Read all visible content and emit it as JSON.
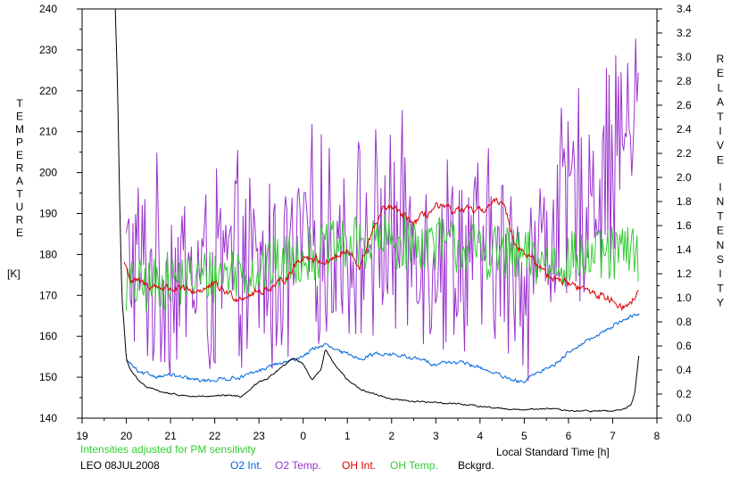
{
  "chart_data": {
    "type": "line",
    "note": "Intensities adjusted for PM sensitivity",
    "footer_left": "LEO 08JUL2008",
    "xlabel": "Local Standard Time [h]",
    "ylabel_left": {
      "letters": [
        "T",
        "E",
        "M",
        "P",
        "E",
        "R",
        "A",
        "T",
        "U",
        "R",
        "E"
      ],
      "unit": "[K]"
    },
    "ylabel_right": {
      "word1": [
        "R",
        "E",
        "L",
        "A",
        "T",
        "I",
        "V",
        "E"
      ],
      "word2": [
        "I",
        "N",
        "T",
        "E",
        "N",
        "S",
        "I",
        "T",
        "Y"
      ]
    },
    "x_ticks": [
      "19",
      "20",
      "21",
      "22",
      "23",
      "0",
      "1",
      "2",
      "3",
      "4",
      "5",
      "6",
      "7",
      "8"
    ],
    "xlim": [
      19,
      32
    ],
    "y_left_ticks": [
      "140",
      "150",
      "160",
      "170",
      "180",
      "190",
      "200",
      "210",
      "220",
      "230",
      "240"
    ],
    "ylim_left": [
      140,
      240
    ],
    "y_right_ticks": [
      "0.0",
      "0.2",
      "0.4",
      "0.6",
      "0.8",
      "1.0",
      "1.2",
      "1.4",
      "1.6",
      "1.8",
      "2.0",
      "2.2",
      "2.4",
      "2.6",
      "2.8",
      "3.0",
      "3.2",
      "3.4"
    ],
    "ylim_right": [
      0,
      3.4
    ],
    "grid": false,
    "legend": [
      {
        "name": "O2 Int.",
        "color": "#0066dd"
      },
      {
        "name": "O2 Temp.",
        "color": "#9933cc"
      },
      {
        "name": "OH Int.",
        "color": "#dd0000"
      },
      {
        "name": "OH Temp.",
        "color": "#33cc33"
      },
      {
        "name": "Bckgrd.",
        "color": "#000000"
      }
    ],
    "series": [
      {
        "name": "O2 Temp.",
        "axis": "left",
        "color": "#9933cc",
        "noise": 22,
        "x": [
          20.0,
          20.5,
          21.0,
          21.5,
          22.0,
          22.5,
          23.0,
          23.5,
          24.0,
          24.5,
          25.0,
          25.5,
          26.0,
          26.5,
          27.0,
          27.5,
          28.0,
          28.5,
          29.0,
          29.5,
          30.0,
          30.5,
          31.0,
          31.5,
          31.6
        ],
        "y": [
          178,
          175,
          176,
          174,
          175,
          176,
          175,
          176,
          182,
          183,
          182,
          184,
          185,
          184,
          182,
          181,
          180,
          178,
          175,
          185,
          192,
          196,
          205,
          213,
          215
        ]
      },
      {
        "name": "OH Temp.",
        "axis": "left",
        "color": "#33cc33",
        "noise": 7,
        "x": [
          20.0,
          20.5,
          21.0,
          21.5,
          22.0,
          22.5,
          23.0,
          23.5,
          24.0,
          24.5,
          25.0,
          25.5,
          26.0,
          26.5,
          27.0,
          27.5,
          28.0,
          28.5,
          29.0,
          29.5,
          30.0,
          30.5,
          31.0,
          31.5,
          31.6
        ],
        "y": [
          172,
          172,
          174,
          174,
          175,
          176,
          176,
          178,
          180,
          181,
          182,
          183,
          183,
          183,
          183,
          182,
          181,
          180,
          179,
          178,
          179,
          179,
          180,
          181,
          180
        ]
      },
      {
        "name": "OH Int.",
        "axis": "right",
        "color": "#dd0000",
        "noise": 0.03,
        "x": [
          19.95,
          20.1,
          20.5,
          21.0,
          21.5,
          22.0,
          22.5,
          23.0,
          23.5,
          24.0,
          24.5,
          25.0,
          25.3,
          25.5,
          25.8,
          26.0,
          26.5,
          27.0,
          27.5,
          28.0,
          28.5,
          28.8,
          29.0,
          29.5,
          30.0,
          30.5,
          31.0,
          31.3,
          31.6
        ],
        "y": [
          1.3,
          1.15,
          1.1,
          1.08,
          1.05,
          1.1,
          1.0,
          1.05,
          1.12,
          1.35,
          1.3,
          1.38,
          1.25,
          1.5,
          1.72,
          1.75,
          1.62,
          1.75,
          1.72,
          1.72,
          1.82,
          1.45,
          1.38,
          1.2,
          1.12,
          1.05,
          0.98,
          0.92,
          1.05
        ]
      },
      {
        "name": "O2 Int.",
        "axis": "right",
        "color": "#0066dd",
        "noise": 0.015,
        "x": [
          20.0,
          20.1,
          20.3,
          20.7,
          21.0,
          21.3,
          21.7,
          22.0,
          22.3,
          22.7,
          23.0,
          23.3,
          23.7,
          24.0,
          24.3,
          24.5,
          24.8,
          25.0,
          25.3,
          25.7,
          26.0,
          26.3,
          26.7,
          27.0,
          27.3,
          27.7,
          28.0,
          28.3,
          28.7,
          29.0,
          29.3,
          29.7,
          30.0,
          30.3,
          30.7,
          31.0,
          31.3,
          31.6
        ],
        "y": [
          0.48,
          0.45,
          0.37,
          0.35,
          0.36,
          0.33,
          0.31,
          0.32,
          0.33,
          0.35,
          0.39,
          0.44,
          0.47,
          0.52,
          0.59,
          0.61,
          0.55,
          0.53,
          0.5,
          0.54,
          0.53,
          0.51,
          0.48,
          0.45,
          0.47,
          0.45,
          0.42,
          0.38,
          0.31,
          0.3,
          0.38,
          0.45,
          0.55,
          0.62,
          0.69,
          0.77,
          0.83,
          0.86
        ]
      },
      {
        "name": "Bckgrd.",
        "axis": "right",
        "color": "#000000",
        "noise": 0.006,
        "x": [
          19.75,
          19.8,
          19.85,
          19.9,
          19.95,
          20.0,
          20.1,
          20.3,
          20.5,
          21.0,
          21.5,
          22.0,
          22.3,
          22.6,
          23.0,
          23.2,
          23.5,
          23.8,
          24.0,
          24.2,
          24.4,
          24.5,
          24.7,
          25.0,
          25.3,
          25.6,
          26.0,
          26.5,
          27.0,
          27.5,
          28.0,
          28.5,
          29.0,
          29.5,
          30.0,
          30.5,
          31.0,
          31.2,
          31.4,
          31.5,
          31.6
        ],
        "y": [
          3.4,
          2.8,
          1.8,
          1.0,
          0.75,
          0.5,
          0.4,
          0.3,
          0.25,
          0.2,
          0.18,
          0.18,
          0.19,
          0.18,
          0.3,
          0.33,
          0.42,
          0.5,
          0.45,
          0.32,
          0.4,
          0.58,
          0.45,
          0.32,
          0.24,
          0.2,
          0.16,
          0.14,
          0.13,
          0.12,
          0.1,
          0.08,
          0.07,
          0.08,
          0.06,
          0.06,
          0.06,
          0.07,
          0.1,
          0.2,
          0.55
        ]
      }
    ]
  }
}
